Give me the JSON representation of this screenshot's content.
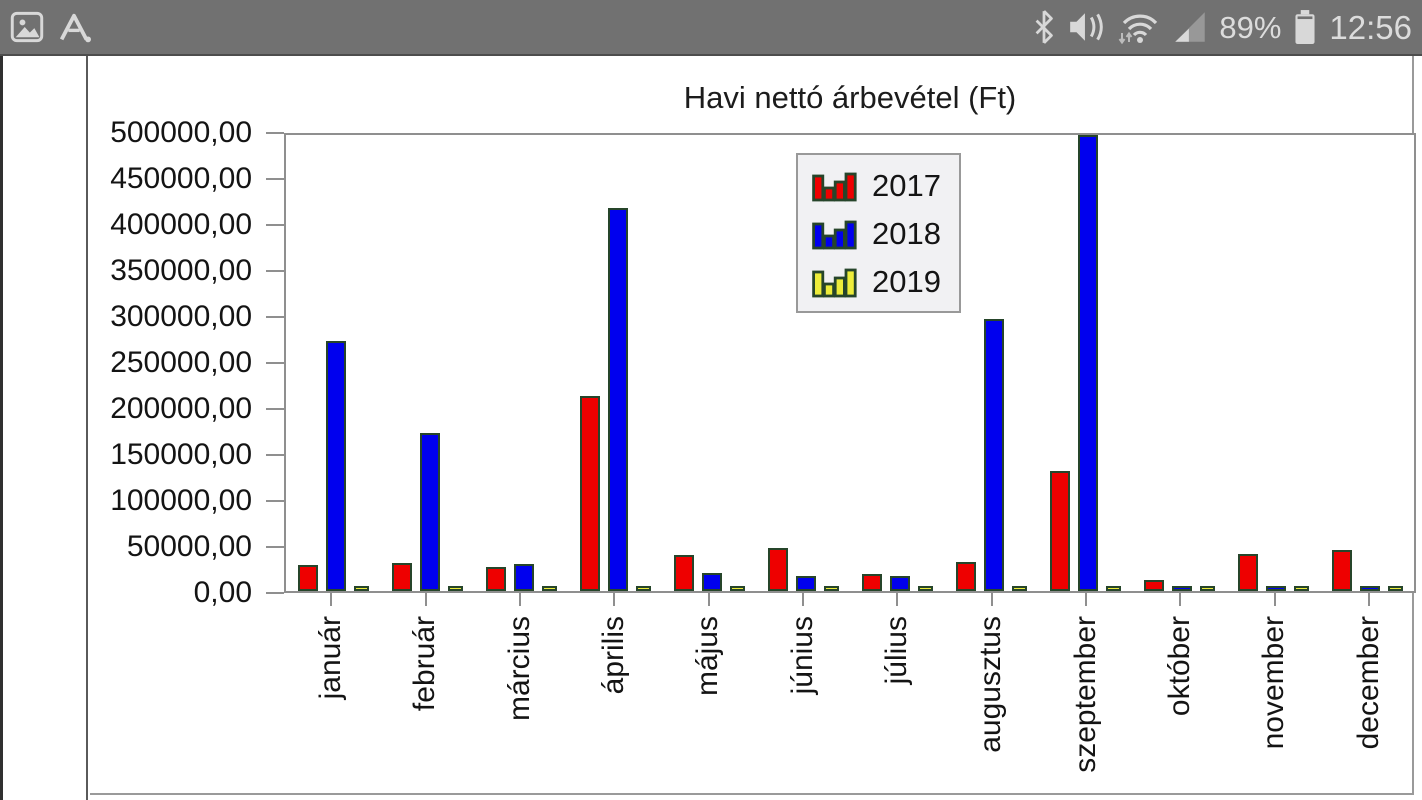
{
  "status_bar": {
    "time": "12:56",
    "battery_percent": "89%",
    "icons_left": [
      "gallery-icon",
      "app-a-icon"
    ],
    "icons_right": [
      "bluetooth-icon",
      "mute-vibrate-icon",
      "wifi-icon",
      "cell-signal-icon",
      "battery-icon"
    ],
    "colors": {
      "background": "#717171",
      "foreground": "#dcdcdc"
    }
  },
  "side_panel": {
    "content": ""
  },
  "chart": {
    "title": "Havi nettó árbevétel (Ft)",
    "y_axis": {
      "tick_labels": [
        "500000,00",
        "450000,00",
        "400000,00",
        "350000,00",
        "300000,00",
        "250000,00",
        "200000,00",
        "150000,00",
        "100000,00",
        "50000,00",
        "0,00"
      ]
    },
    "legend": {
      "entries": [
        {
          "label": "2017",
          "color": "#ee0000"
        },
        {
          "label": "2018",
          "color": "#0000ee"
        },
        {
          "label": "2019",
          "color": "#eded3a"
        }
      ]
    },
    "frame_color": "#8f8f8f",
    "bar_outline_color": "#26452a"
  },
  "chart_data": {
    "type": "bar",
    "title": "Havi nettó árbevétel (Ft)",
    "categories": [
      "január",
      "február",
      "március",
      "április",
      "május",
      "június",
      "július",
      "augusztus",
      "szeptember",
      "október",
      "november",
      "december"
    ],
    "series": [
      {
        "name": "2017",
        "color": "#ee0000",
        "values": [
          28000,
          31000,
          26000,
          213000,
          39000,
          47000,
          19000,
          32000,
          131000,
          12000,
          40000,
          45000
        ]
      },
      {
        "name": "2018",
        "color": "#0000ee",
        "values": [
          273000,
          172000,
          30000,
          418000,
          20000,
          16000,
          16000,
          297000,
          498000,
          2500,
          2500,
          2500
        ]
      },
      {
        "name": "2019",
        "color": "#eded3a",
        "values": [
          2000,
          2000,
          2000,
          2000,
          2000,
          2000,
          2000,
          2000,
          2000,
          2000,
          2000,
          2000
        ]
      }
    ],
    "xlabel": "",
    "ylabel": "",
    "ylim": [
      0,
      500000
    ],
    "y_tick_step": 50000,
    "grid": false,
    "legend_position": "upper-center"
  }
}
